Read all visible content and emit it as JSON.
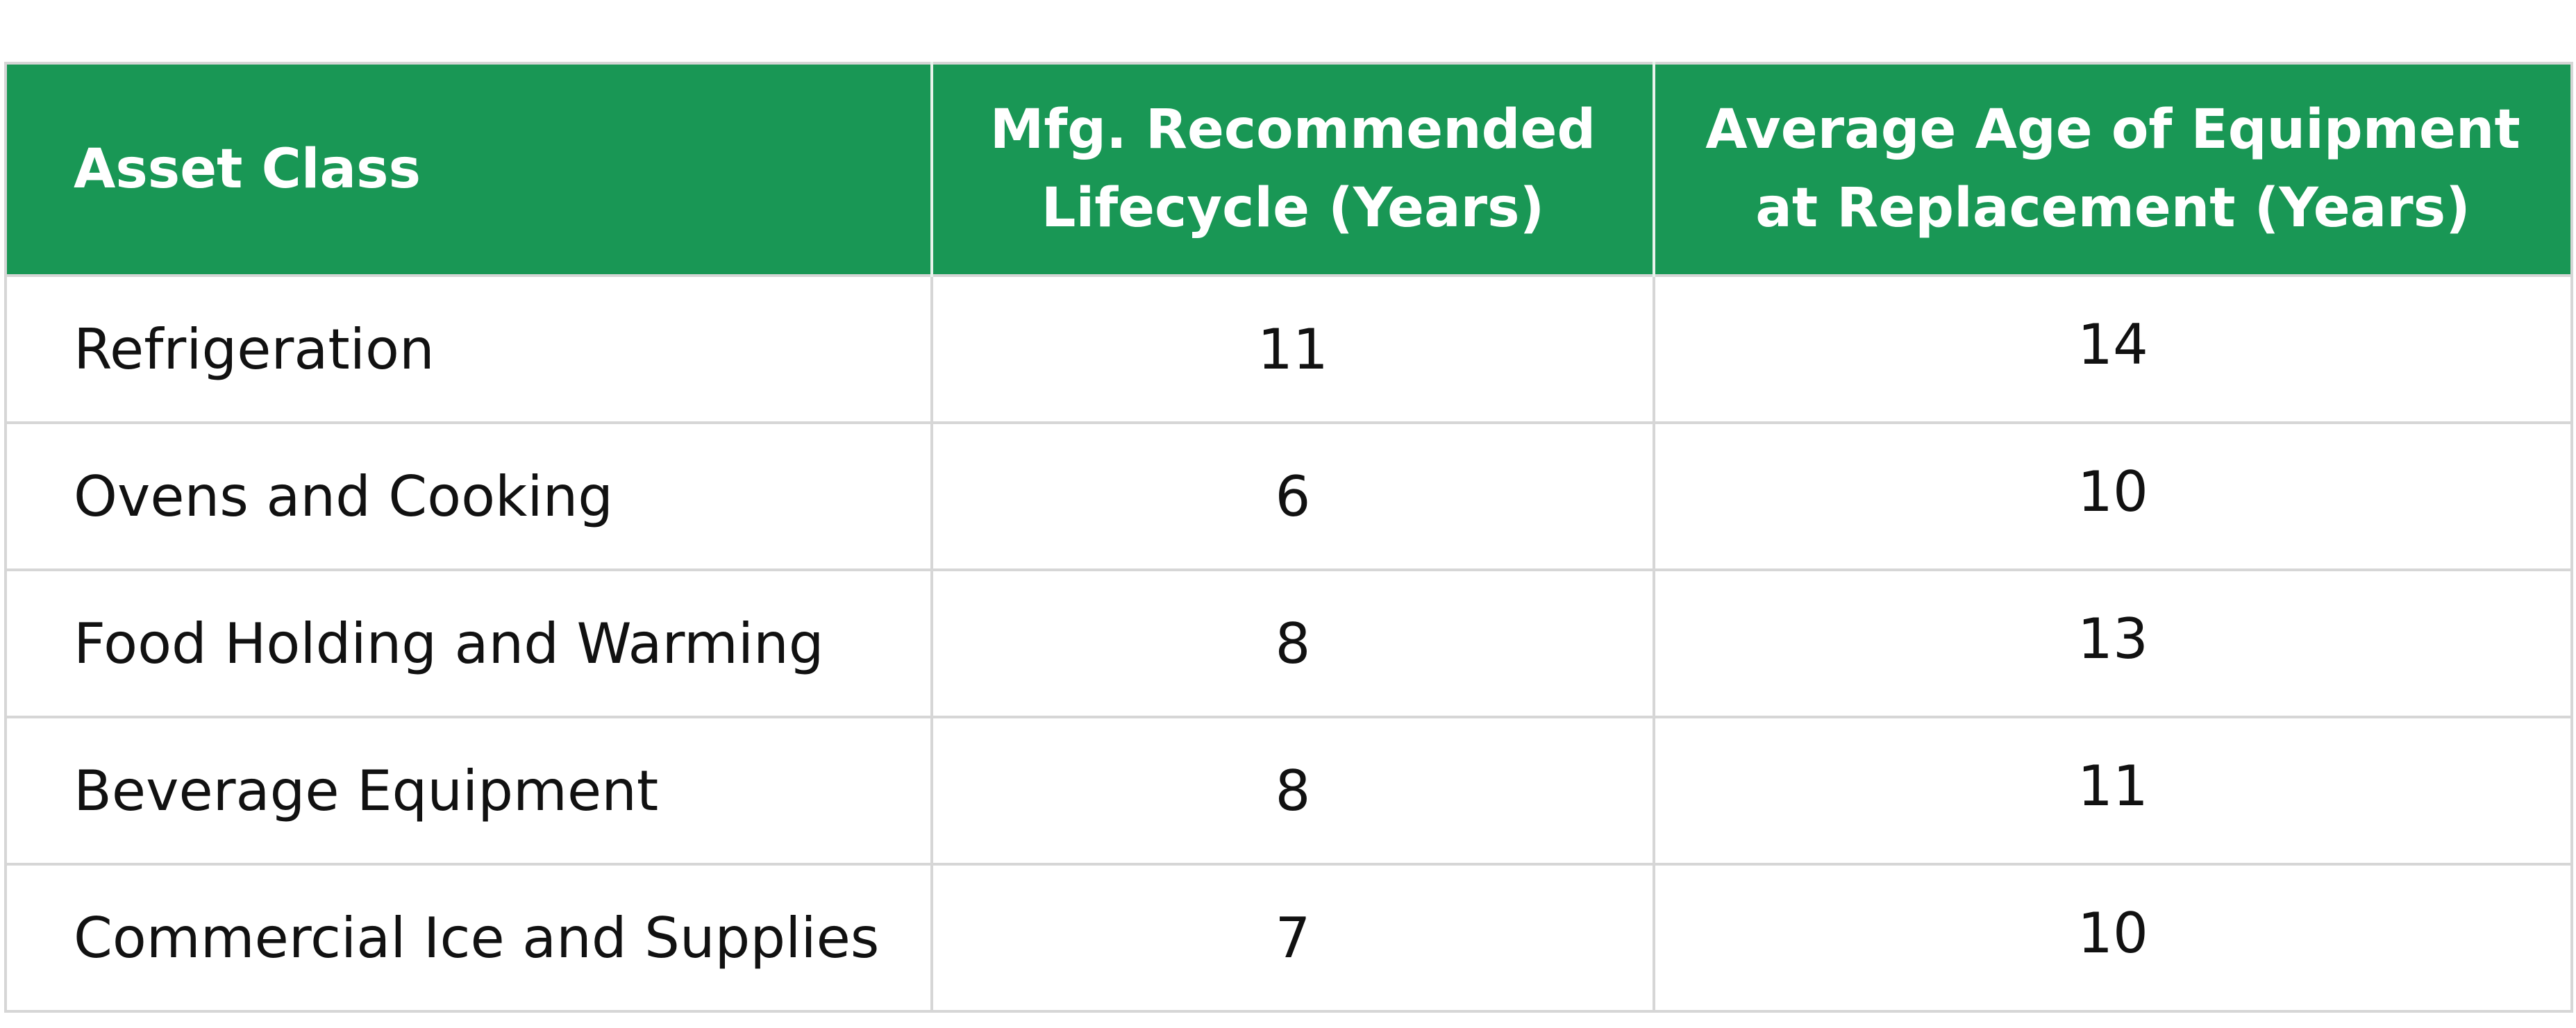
{
  "chart_data": {
    "type": "table",
    "columns": [
      {
        "label": "Asset Class"
      },
      {
        "lines": [
          "Mfg. Recommended",
          "Lifecycle (Years)"
        ]
      },
      {
        "lines": [
          "Average Age of Equipment",
          "at Replacement (Years)"
        ]
      }
    ],
    "categories": [
      "Refrigeration",
      "Ovens and Cooking",
      "Food Holding and Warming",
      "Beverage Equipment",
      "Commercial Ice and Supplies"
    ],
    "series": [
      {
        "name": "Mfg. Recommended Lifecycle (Years)",
        "values": [
          11,
          6,
          8,
          8,
          7
        ]
      },
      {
        "name": "Average Age of Equipment at Replacement (Years)",
        "values": [
          14,
          10,
          13,
          11,
          10
        ]
      }
    ]
  },
  "colors": {
    "header_background": "#199755",
    "header_text": "#ffffff",
    "grid_line": "#d6d6d6"
  }
}
